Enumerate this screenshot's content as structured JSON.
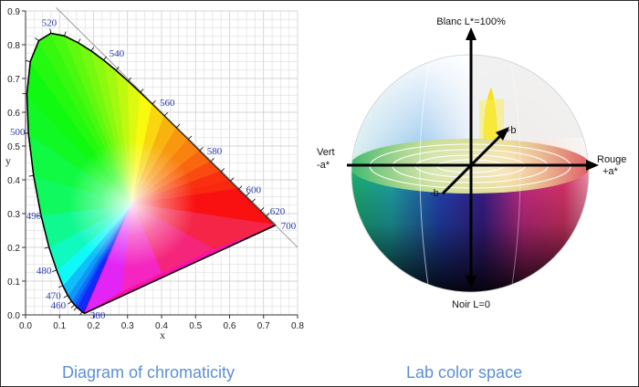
{
  "chromaticity": {
    "caption": "Diagram of chromaticity",
    "xlabel": "x",
    "ylabel": "y",
    "x_ticks": [
      "0.0",
      "0.1",
      "0.2",
      "0.3",
      "0.4",
      "0.5",
      "0.6",
      "0.7",
      "0.8"
    ],
    "y_ticks": [
      "0.0",
      "0.1",
      "0.2",
      "0.3",
      "0.4",
      "0.5",
      "0.6",
      "0.7",
      "0.8",
      "0.9"
    ],
    "xlim": [
      0,
      0.8
    ],
    "ylim": [
      0,
      0.9
    ],
    "wavelength_labels": [
      {
        "text": "520",
        "x": 0.074,
        "y": 0.834
      },
      {
        "text": "540",
        "x": 0.23,
        "y": 0.754
      },
      {
        "text": "560",
        "x": 0.373,
        "y": 0.624
      },
      {
        "text": "580",
        "x": 0.512,
        "y": 0.487
      },
      {
        "text": "600",
        "x": 0.627,
        "y": 0.372
      },
      {
        "text": "620",
        "x": 0.692,
        "y": 0.308
      },
      {
        "text": "700",
        "x": 0.735,
        "y": 0.265
      },
      {
        "text": "500",
        "x": 0.008,
        "y": 0.538
      },
      {
        "text": "490",
        "x": 0.045,
        "y": 0.295
      },
      {
        "text": "480",
        "x": 0.091,
        "y": 0.133
      },
      {
        "text": "470",
        "x": 0.124,
        "y": 0.058
      },
      {
        "text": "460",
        "x": 0.144,
        "y": 0.03
      },
      {
        "text": "380",
        "x": 0.174,
        "y": 0.005
      }
    ]
  },
  "lab": {
    "caption": "Lab color space",
    "top_label": "Blanc L*=100%",
    "bottom_label": "Noir L=0",
    "left_label_1": "Vert",
    "left_label_2": "-a*",
    "right_label_1": "Rouge",
    "right_label_2": "+a*",
    "plus_b": "+b",
    "minus_b": "-b"
  }
}
